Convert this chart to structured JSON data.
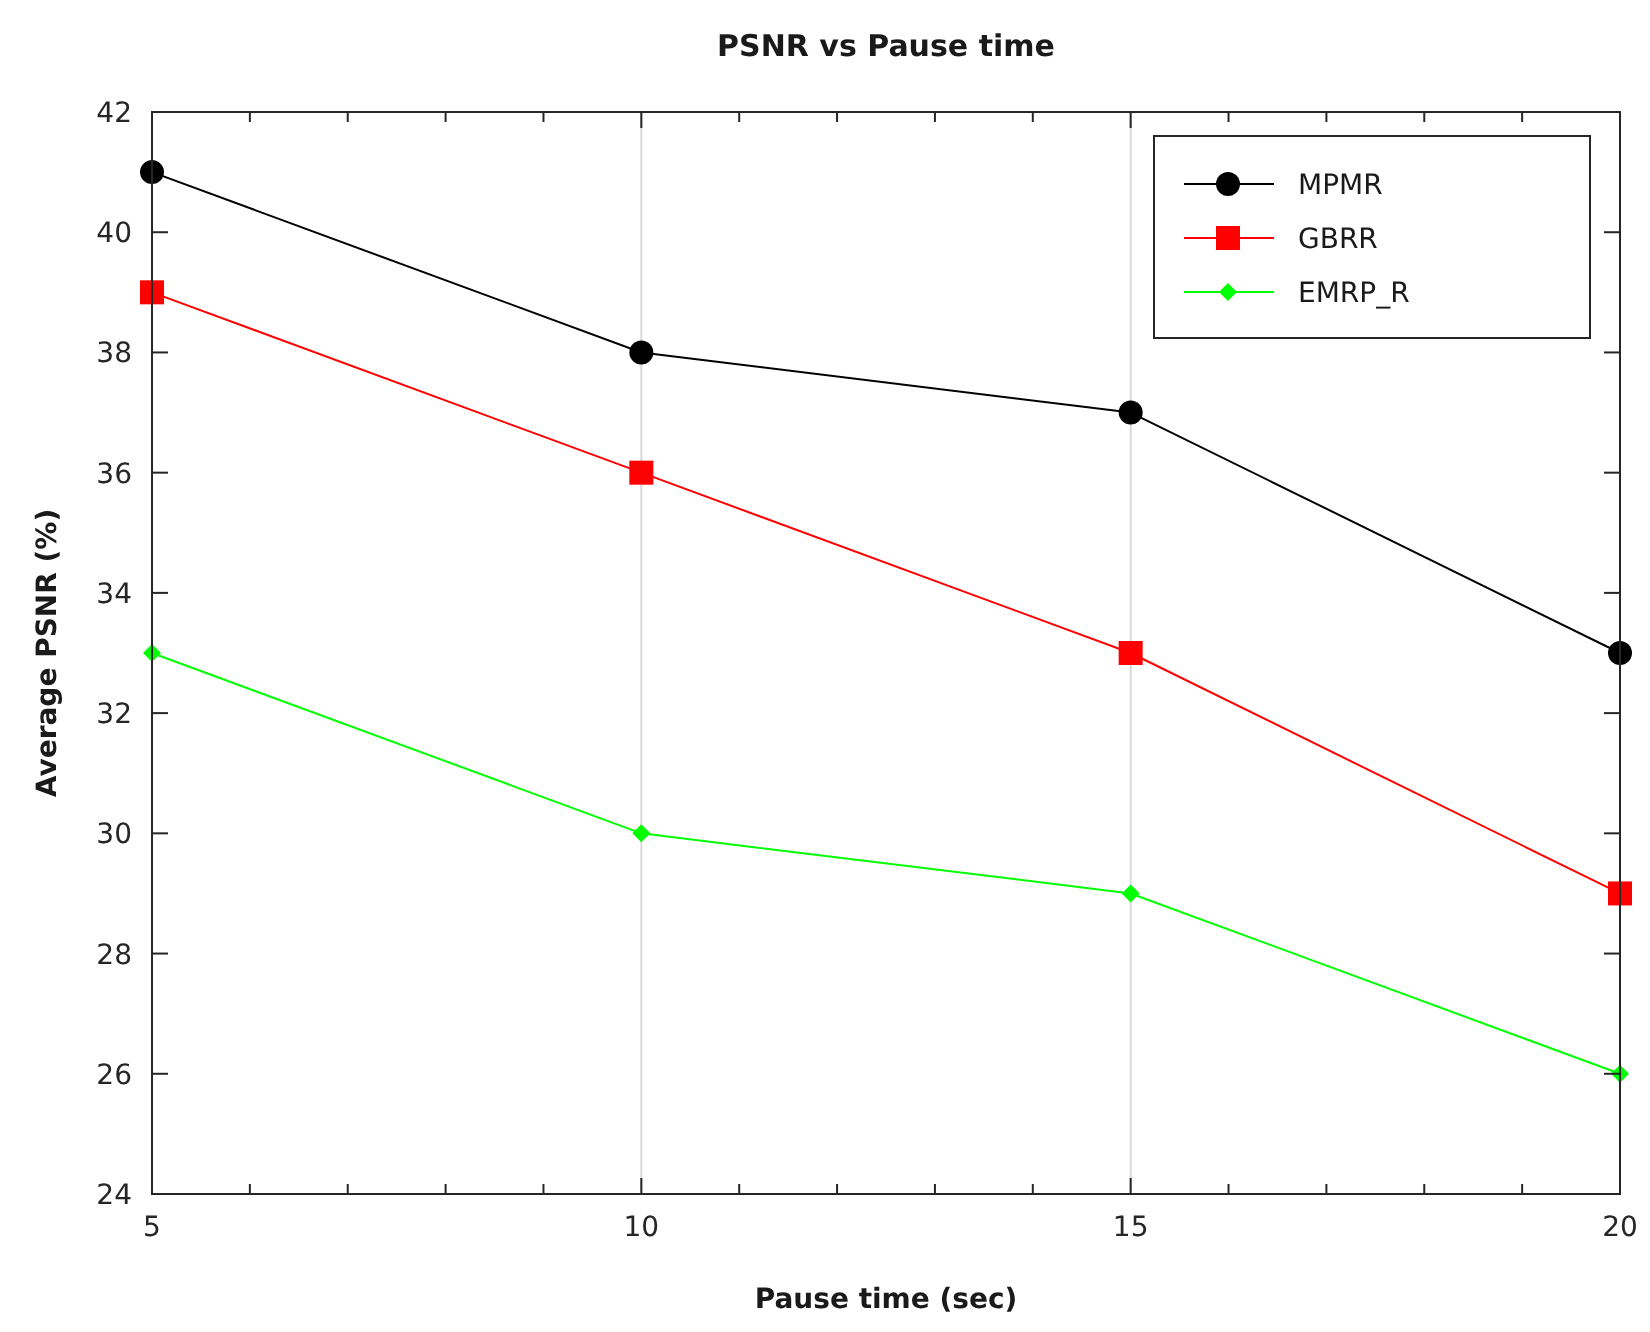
{
  "chart_data": {
    "type": "line",
    "title": "PSNR vs Pause time",
    "xlabel": "Pause time (sec)",
    "ylabel": "Average PSNR (%)",
    "x": [
      5,
      10,
      15,
      20
    ],
    "series": [
      {
        "name": "MPMR",
        "color": "#000000",
        "values": [
          41,
          38,
          37,
          33
        ],
        "marker": "circle"
      },
      {
        "name": "GBRR",
        "color": "#ff0000",
        "values": [
          39,
          36,
          33,
          29
        ],
        "marker": "square"
      },
      {
        "name": "EMRP_R",
        "color": "#00ff00",
        "values": [
          33,
          30,
          29,
          26
        ],
        "marker": "diamond"
      }
    ],
    "xlim": [
      5,
      20
    ],
    "ylim": [
      24,
      42
    ],
    "xticks": [
      5,
      {
        "value": 6,
        "label": null
      },
      {
        "value": 7,
        "label": null
      },
      {
        "value": 8,
        "label": null
      },
      {
        "value": 9,
        "label": null
      },
      10,
      {
        "value": 11,
        "label": null
      },
      {
        "value": 12,
        "label": null
      },
      {
        "value": 13,
        "label": null
      },
      {
        "value": 14,
        "label": null
      },
      15,
      {
        "value": 16,
        "label": null
      },
      {
        "value": 17,
        "label": null
      },
      {
        "value": 18,
        "label": null
      },
      {
        "value": 19,
        "label": null
      },
      20
    ],
    "yticks": [
      24,
      26,
      28,
      30,
      32,
      34,
      36,
      38,
      40,
      42
    ],
    "grid": "x",
    "legend": "top right",
    "line_style": "solid"
  }
}
